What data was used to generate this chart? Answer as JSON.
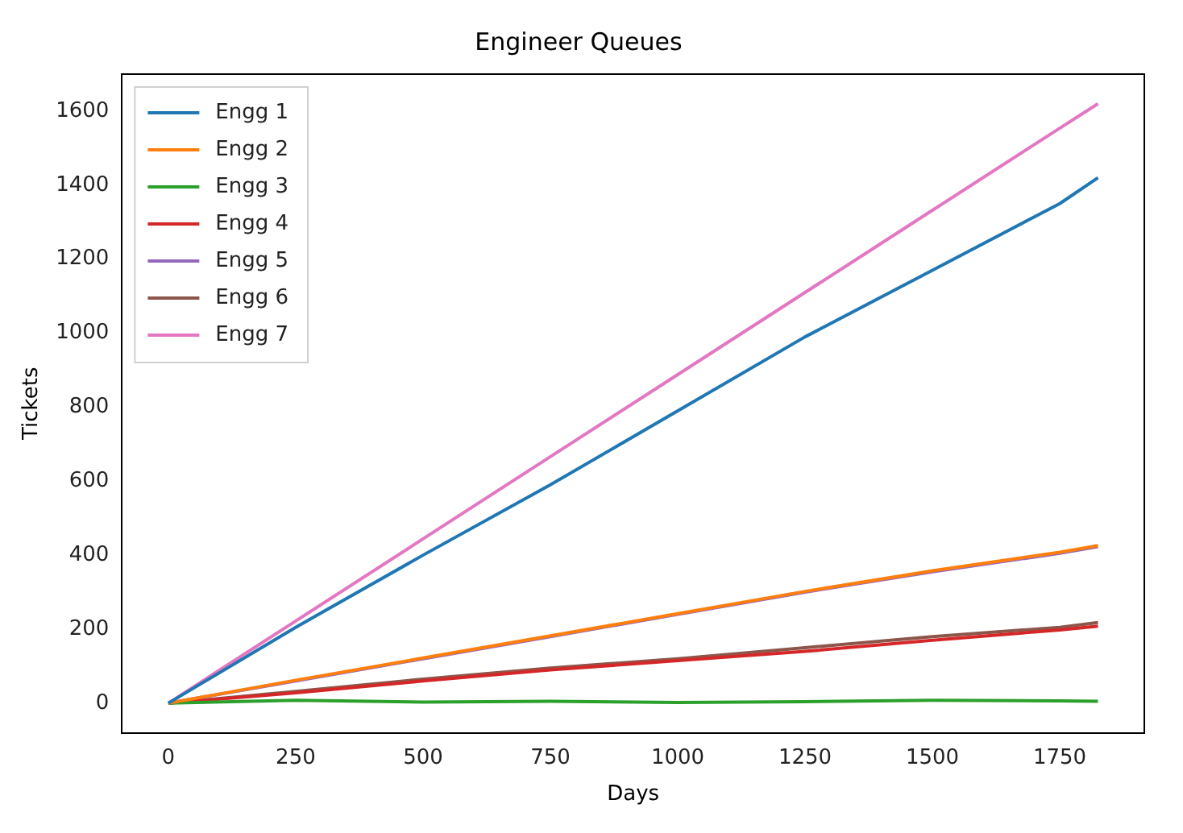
{
  "chart_data": {
    "type": "line",
    "title": "Engineer Queues",
    "xlabel": "Days",
    "ylabel": "Tickets",
    "x": [
      0,
      250,
      500,
      750,
      1000,
      1250,
      1500,
      1750,
      1825
    ],
    "series": [
      {
        "name": "Engg 1",
        "color": "#1f77b4",
        "values": [
          0,
          205,
          400,
          590,
          790,
          990,
          1170,
          1350,
          1420
        ]
      },
      {
        "name": "Engg 2",
        "color": "#ff7f0e",
        "values": [
          0,
          62,
          122,
          182,
          242,
          302,
          358,
          408,
          426
        ]
      },
      {
        "name": "Engg 3",
        "color": "#2ca02c",
        "values": [
          0,
          8,
          3,
          5,
          2,
          4,
          8,
          6,
          5
        ]
      },
      {
        "name": "Engg 4",
        "color": "#d62728",
        "values": [
          0,
          28,
          60,
          90,
          115,
          140,
          170,
          198,
          208
        ]
      },
      {
        "name": "Engg 5",
        "color": "#9467bd",
        "values": [
          0,
          60,
          120,
          180,
          240,
          300,
          355,
          405,
          423
        ]
      },
      {
        "name": "Engg 6",
        "color": "#8c564b",
        "values": [
          0,
          32,
          65,
          95,
          120,
          150,
          180,
          205,
          218
        ]
      },
      {
        "name": "Engg 7",
        "color": "#e377c2",
        "values": [
          0,
          222,
          444,
          666,
          888,
          1110,
          1332,
          1554,
          1620
        ]
      }
    ],
    "xlim": [
      -91,
      1916
    ],
    "xticks": [
      0,
      250,
      500,
      750,
      1000,
      1250,
      1500,
      1750
    ],
    "ylim": [
      -80,
      1700
    ],
    "yticks": [
      0,
      200,
      400,
      600,
      800,
      1000,
      1200,
      1400,
      1600
    ],
    "grid": false,
    "legend": "top left",
    "marker": "none",
    "line_style": "solid"
  }
}
